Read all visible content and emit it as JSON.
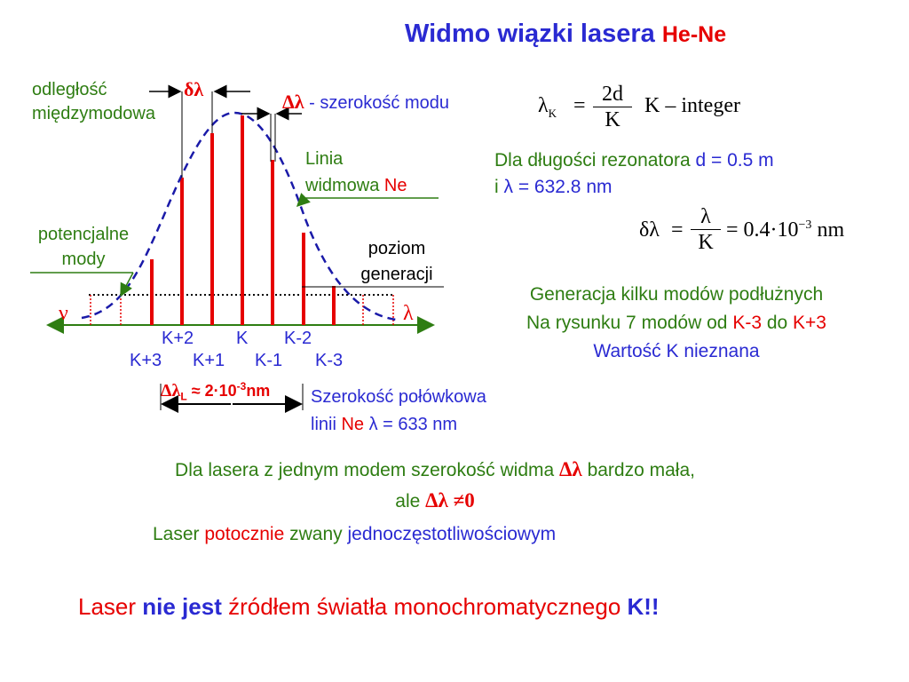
{
  "title": {
    "text": "Widmo wiązki lasera",
    "accent": "He-Ne"
  },
  "diagram": {
    "mode_spacing_label": "odległość międzymodowa",
    "mode_spacing_line1": "odległość",
    "mode_spacing_line2": "międzymodowa",
    "delta_small": "δλ",
    "mode_width_symbol": "Δλ",
    "mode_width_text": " - szerokość modu",
    "ne_line_line1": "Linia",
    "ne_line_line2_prefix": "widmowa ",
    "ne_line_line2_accent": "Ne",
    "potential_line1": "potencjalne",
    "potential_line2": "mody",
    "gen_level_line1": "poziom",
    "gen_level_line2": "generacji",
    "nu_symbol": "ν",
    "lambda_symbol": "λ",
    "modes_top": [
      "K+2",
      "K",
      "K-2"
    ],
    "modes_bottom": [
      "K+3",
      "K+1",
      "K-1",
      "K-3"
    ],
    "linewidth_symbol": "Δλ",
    "linewidth_sub": "L",
    "linewidth_value_prefix": " ≈ 2·10",
    "linewidth_value_exp": "-3",
    "linewidth_value_unit": "nm",
    "halfwidth_line1": "Szerokość połówkowa",
    "halfwidth_line2_prefix": "linii ",
    "halfwidth_line2_accent": "Ne",
    "halfwidth_line2_rest": " λ = 633 nm"
  },
  "formula1": {
    "lhs": "λ",
    "lhs_sub": "K",
    "eq": "=",
    "num": "2d",
    "den": "K",
    "note": "K – integer"
  },
  "resonator": {
    "line1_prefix": "Dla długości rezonatora ",
    "line1_value": "d = 0.5 m",
    "line2_prefix": "i ",
    "line2_value": "λ = 632.8 nm"
  },
  "formula2": {
    "lhs": "δλ",
    "eq": "=",
    "num": "λ",
    "den": "K",
    "rhs": "= 0.4·10",
    "rhs_exp": "−3",
    "unit": " nm"
  },
  "generation": {
    "line1": "Generacja kilku modów podłużnych",
    "line2_prefix": "Na rysunku 7 modów od ",
    "line2_from": "K-3",
    "line2_mid": " do ",
    "line2_to": "K+3",
    "line3": "Wartość K nieznana"
  },
  "single_mode": {
    "line1_prefix": "Dla lasera z jednym modem szerokość widma ",
    "line1_symbol": "Δλ",
    "line1_suffix": " bardzo mała,",
    "line2_prefix": "ale  ",
    "line2_symbol": "Δλ ≠0"
  },
  "laser_line": {
    "prefix": "Laser ",
    "accent": "potocznie",
    "mid": " zwany  ",
    "blue": "jednoczęstotliwościowym"
  },
  "conclusion": {
    "prefix": "Laser ",
    "bold": "nie jest",
    "rest": " źródłem światła monochromatycznego  ",
    "end": "K!!"
  },
  "colors": {
    "blue": "#2a2ad2",
    "red": "#e60000",
    "green": "#2e7d12",
    "curve": "#1a1aa8"
  }
}
